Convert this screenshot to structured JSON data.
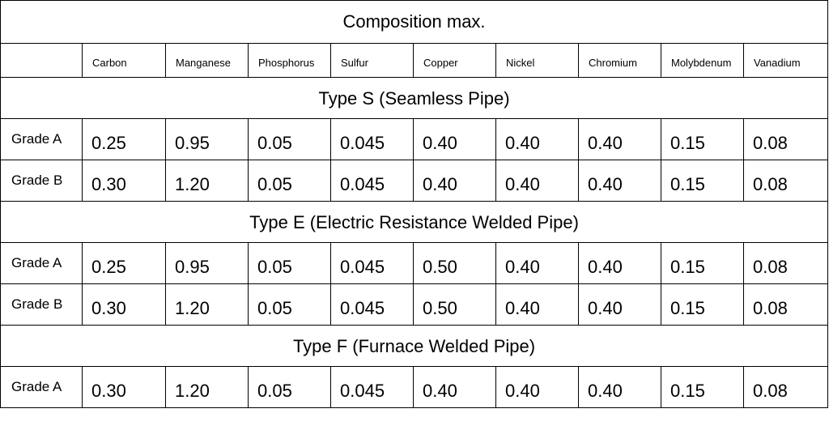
{
  "title": "Composition max.",
  "columns": [
    "",
    "Carbon",
    "Manganese",
    "Phosphorus",
    "Sulfur",
    "Copper",
    "Nickel",
    "Chromium",
    "Molybdenum",
    "Vanadium"
  ],
  "sections": [
    {
      "title": "Type S (Seamless Pipe)",
      "rows": [
        {
          "grade": "Grade A",
          "values": [
            "0.25",
            "0.95",
            "0.05",
            "0.045",
            "0.40",
            "0.40",
            "0.40",
            "0.15",
            "0.08"
          ]
        },
        {
          "grade": "Grade B",
          "values": [
            "0.30",
            "1.20",
            "0.05",
            "0.045",
            "0.40",
            "0.40",
            "0.40",
            "0.15",
            "0.08"
          ]
        }
      ]
    },
    {
      "title": "Type E (Electric Resistance Welded Pipe)",
      "rows": [
        {
          "grade": "Grade A",
          "values": [
            "0.25",
            "0.95",
            "0.05",
            "0.045",
            "0.50",
            "0.40",
            "0.40",
            "0.15",
            "0.08"
          ]
        },
        {
          "grade": "Grade B",
          "values": [
            "0.30",
            "1.20",
            "0.05",
            "0.045",
            "0.50",
            "0.40",
            "0.40",
            "0.15",
            "0.08"
          ]
        }
      ]
    },
    {
      "title": "Type F (Furnace Welded Pipe)",
      "rows": [
        {
          "grade": "Grade A",
          "values": [
            "0.30",
            "1.20",
            "0.05",
            "0.045",
            "0.40",
            "0.40",
            "0.40",
            "0.15",
            "0.08"
          ]
        }
      ]
    }
  ]
}
